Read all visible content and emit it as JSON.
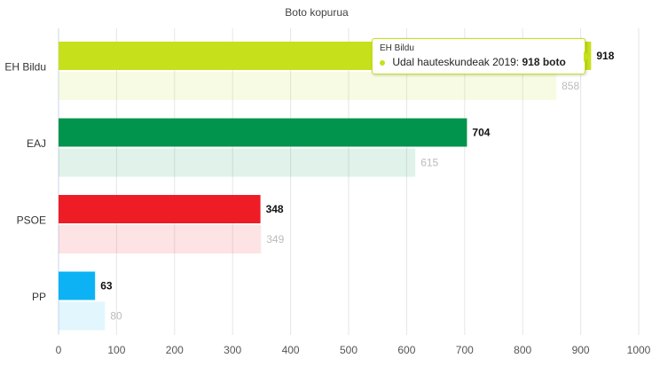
{
  "chart_data": {
    "type": "bar",
    "orientation": "horizontal",
    "title": "Boto kopurua",
    "categories": [
      "EH Bildu",
      "EAJ",
      "PSOE",
      "PP"
    ],
    "series": [
      {
        "values": [
          918,
          704,
          348,
          63
        ]
      },
      {
        "values": [
          858,
          615,
          349,
          80
        ]
      }
    ],
    "colors": [
      "#c6e11b",
      "#00944c",
      "#ee1c25",
      "#0db2f4"
    ],
    "xlim": [
      0,
      1000
    ],
    "xticks": [
      0,
      100,
      200,
      300,
      400,
      500,
      600,
      700,
      800,
      900,
      1000
    ],
    "grid": true
  },
  "tooltip": {
    "title": "EH Bildu",
    "series_label": "Udal hauteskundeak 2019:",
    "value": "918 boto"
  }
}
